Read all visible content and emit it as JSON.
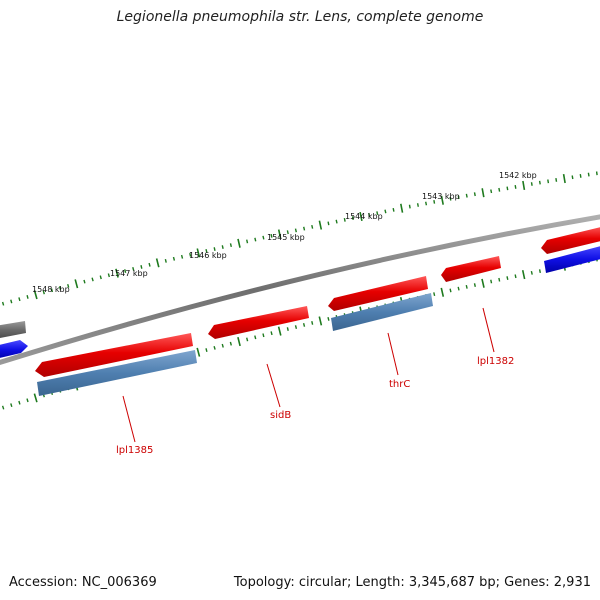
{
  "title": "Legionella pneumophila str. Lens, complete genome",
  "footer": {
    "accession": "Accession: NC_006369",
    "summary": "Topology: circular; Length: 3,345,687 bp; Genes: 2,931"
  },
  "colors": {
    "backbone": "#7a7a7a",
    "forward_gene": "#e60000",
    "reverse_gene_blue": "#1010e6",
    "rna_like": "#4f7fb0",
    "grey_gene": "#6a6a6a",
    "tick": "#1e7a1e",
    "gene_label": "#cc0000"
  },
  "kbp_labels": [
    "1548 kbp",
    "1547 kbp",
    "1546 kbp",
    "1545 kbp",
    "1544 kbp",
    "1543 kbp",
    "1542 kbp"
  ],
  "gene_labels": [
    "lpl1385",
    "sidB",
    "thrC",
    "lpl1382"
  ]
}
